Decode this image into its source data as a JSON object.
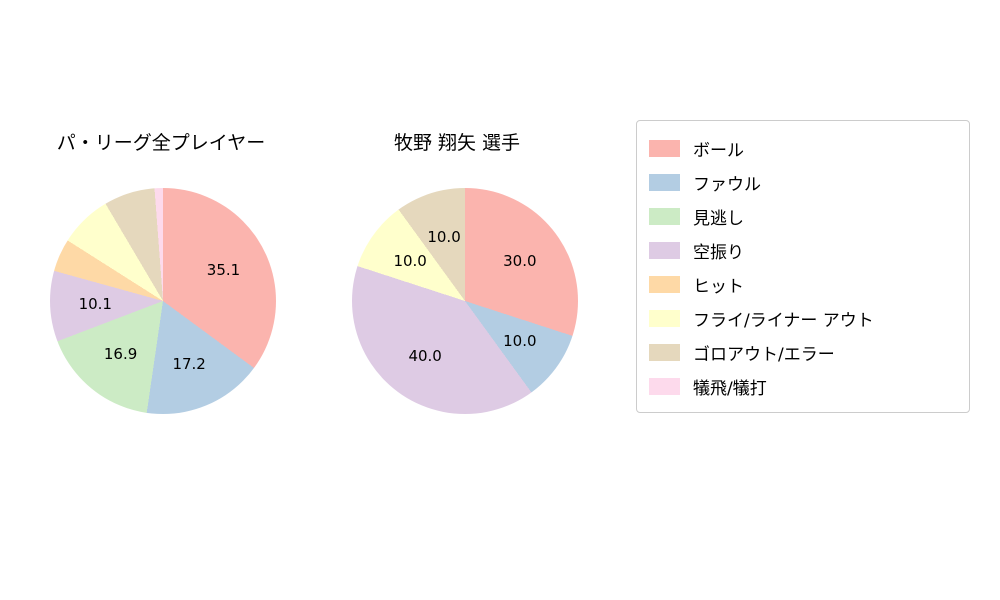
{
  "legend": {
    "items": [
      {
        "label": "ボール",
        "color": "#fbb4ae"
      },
      {
        "label": "ファウル",
        "color": "#b3cde3"
      },
      {
        "label": "見逃し",
        "color": "#ccebc5"
      },
      {
        "label": "空振り",
        "color": "#decbe4"
      },
      {
        "label": "ヒット",
        "color": "#fed9a6"
      },
      {
        "label": "フライ/ライナー アウト",
        "color": "#ffffcc"
      },
      {
        "label": "ゴロアウト/エラー",
        "color": "#e5d8bd"
      },
      {
        "label": "犠飛/犠打",
        "color": "#fddaec"
      }
    ]
  },
  "chart_data": [
    {
      "type": "pie",
      "title": "パ・リーグ全プレイヤー",
      "direction": "clockwise-from-top",
      "label_threshold": 10,
      "slices": [
        {
          "category": "ボール",
          "value": 35.1,
          "color": "#fbb4ae",
          "label": "35.1"
        },
        {
          "category": "ファウル",
          "value": 17.2,
          "color": "#b3cde3",
          "label": "17.2"
        },
        {
          "category": "見逃し",
          "value": 16.9,
          "color": "#ccebc5",
          "label": "16.9"
        },
        {
          "category": "空振り",
          "value": 10.1,
          "color": "#decbe4",
          "label": "10.1"
        },
        {
          "category": "ヒット",
          "value": 4.7,
          "color": "#fed9a6",
          "label": ""
        },
        {
          "category": "フライ/ライナー アウト",
          "value": 7.5,
          "color": "#ffffcc",
          "label": ""
        },
        {
          "category": "ゴロアウト/エラー",
          "value": 7.3,
          "color": "#e5d8bd",
          "label": ""
        },
        {
          "category": "犠飛/犠打",
          "value": 1.2,
          "color": "#fddaec",
          "label": ""
        }
      ]
    },
    {
      "type": "pie",
      "title": "牧野 翔矢  選手",
      "direction": "clockwise-from-top",
      "label_threshold": 10,
      "slices": [
        {
          "category": "ボール",
          "value": 30.0,
          "color": "#fbb4ae",
          "label": "30.0"
        },
        {
          "category": "ファウル",
          "value": 10.0,
          "color": "#b3cde3",
          "label": "10.0"
        },
        {
          "category": "空振り",
          "value": 40.0,
          "color": "#decbe4",
          "label": "40.0"
        },
        {
          "category": "フライ/ライナー アウト",
          "value": 10.0,
          "color": "#ffffcc",
          "label": "10.0"
        },
        {
          "category": "ゴロアウト/エラー",
          "value": 10.0,
          "color": "#e5d8bd",
          "label": "10.0"
        }
      ]
    }
  ]
}
